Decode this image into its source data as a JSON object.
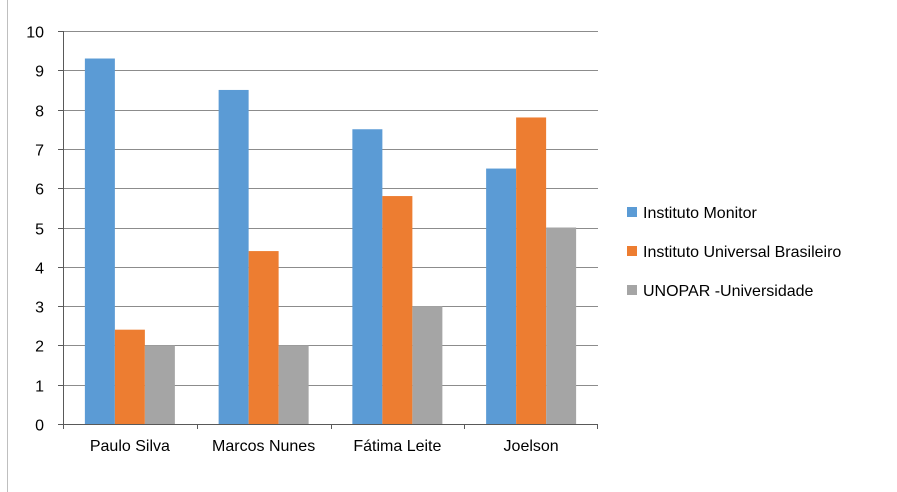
{
  "chart_data": {
    "type": "bar",
    "title": "",
    "xlabel": "",
    "ylabel": "",
    "ylim": [
      0,
      10
    ],
    "yticks": [
      "0",
      "1",
      "2",
      "3",
      "4",
      "5",
      "6",
      "7",
      "8",
      "9",
      "10"
    ],
    "grid": true,
    "legend_position": "right",
    "categories": [
      "Paulo Silva",
      "Marcos  Nunes",
      "Fátima  Leite",
      "Joelson"
    ],
    "series": [
      {
        "name": "Instituto  Monitor",
        "color": "#5B9BD5",
        "values": [
          9.3,
          8.5,
          7.5,
          6.5
        ]
      },
      {
        "name": "Instituto  Universal  Brasileiro",
        "color": "#ED7D31",
        "values": [
          2.4,
          4.4,
          5.8,
          7.8
        ]
      },
      {
        "name": "UNOPAR -Universidade",
        "color": "#A5A5A5",
        "values": [
          2.0,
          2.0,
          3.0,
          5.0
        ]
      }
    ]
  }
}
